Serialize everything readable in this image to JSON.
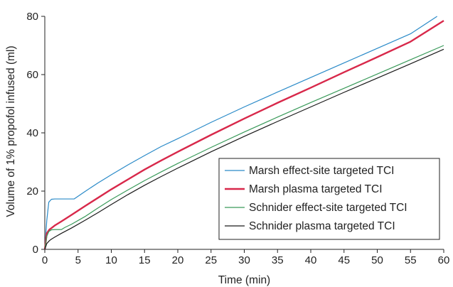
{
  "chart_data": {
    "type": "line",
    "title": "",
    "xlabel": "Time (min)",
    "ylabel": "Volume of 1% propofol infused (ml)",
    "xlim": [
      0,
      60
    ],
    "ylim": [
      0,
      80
    ],
    "xticks": [
      0,
      5,
      10,
      15,
      20,
      25,
      30,
      35,
      40,
      45,
      50,
      55,
      60
    ],
    "yticks": [
      0,
      20,
      40,
      60,
      80
    ],
    "grid": false,
    "legend_position": "bottom-right",
    "series": [
      {
        "name": "Marsh effect-site targeted TCI",
        "color": "#2a8ac8",
        "x": [
          0,
          0.3,
          0.6,
          1.0,
          1.5,
          2,
          3,
          4.4,
          6,
          8,
          10,
          12.5,
          15,
          17.5,
          20,
          25,
          30,
          35,
          40,
          45,
          50,
          55,
          59
        ],
        "y": [
          0,
          10,
          16.2,
          17.2,
          17.3,
          17.3,
          17.3,
          17.3,
          19.8,
          22.8,
          25.6,
          29.0,
          32.2,
          35.3,
          38.0,
          43.6,
          48.9,
          54.0,
          59.0,
          64.0,
          69.0,
          74.0,
          80.0
        ]
      },
      {
        "name": "Marsh plasma targeted TCI",
        "color": "#d8284a",
        "x": [
          0,
          0.3,
          0.7,
          1.0,
          1.5,
          2.5,
          4,
          6,
          8,
          10,
          12.5,
          15,
          17.5,
          20,
          25,
          30,
          35,
          40,
          45,
          50,
          55,
          60
        ],
        "y": [
          0,
          5.5,
          6.8,
          7.3,
          8.2,
          9.6,
          11.8,
          14.8,
          17.7,
          20.6,
          24.0,
          27.4,
          30.5,
          33.5,
          39.3,
          44.9,
          50.3,
          55.5,
          60.8,
          66.0,
          71.3,
          78.5
        ]
      },
      {
        "name": "Schnider effect-site targeted TCI",
        "color": "#3a9a5a",
        "x": [
          0,
          0.3,
          0.6,
          1.0,
          1.5,
          2,
          2.5,
          3,
          4,
          6,
          8,
          10,
          12.5,
          15,
          17.5,
          20,
          25,
          30,
          35,
          40,
          45,
          50,
          55,
          60
        ],
        "y": [
          0,
          4.5,
          6.1,
          6.7,
          6.8,
          6.8,
          6.8,
          7.5,
          8.6,
          11.2,
          14.2,
          17.1,
          20.4,
          23.6,
          26.6,
          29.5,
          35.0,
          40.3,
          45.4,
          50.4,
          55.3,
          60.2,
          65.1,
          70.0
        ]
      },
      {
        "name": "Schnider plasma targeted TCI",
        "color": "#1a1a1a",
        "x": [
          0,
          0.3,
          0.7,
          1.0,
          1.5,
          2.5,
          4,
          6,
          8,
          10,
          12.5,
          15,
          17.5,
          20,
          25,
          30,
          35,
          40,
          45,
          50,
          55,
          60
        ],
        "y": [
          0,
          2.0,
          3.0,
          3.5,
          4.2,
          5.5,
          7.3,
          9.9,
          12.6,
          15.4,
          18.8,
          22.0,
          25.0,
          27.9,
          33.5,
          38.8,
          43.9,
          48.9,
          53.9,
          58.8,
          63.7,
          68.7
        ]
      }
    ]
  }
}
